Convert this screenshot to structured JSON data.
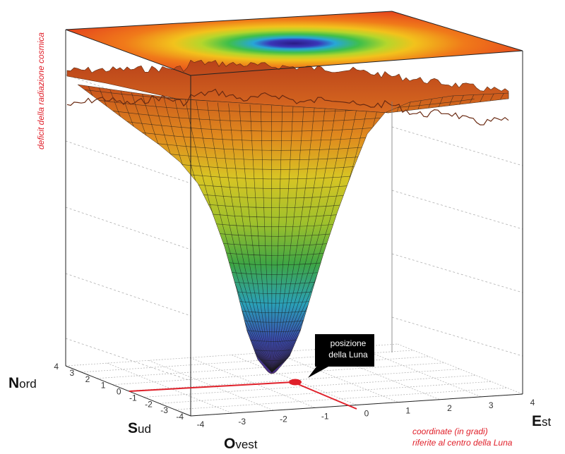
{
  "title": "",
  "axes": {
    "z_label": "deficit della radiazione cosmica",
    "xy_label_line1": "coordinate (in gradi)",
    "xy_label_line2": "riferite al centro della Luna",
    "ew_ticks": [
      "-4",
      "-3",
      "-2",
      "-1",
      "0",
      "1",
      "2",
      "3",
      "4"
    ],
    "ns_ticks": [
      "4",
      "3",
      "2",
      "1",
      "0",
      "-1",
      "-2",
      "-3",
      "-4"
    ]
  },
  "directions": {
    "nord": {
      "initial": "N",
      "rest": "ord"
    },
    "sud": {
      "initial": "S",
      "rest": "ud"
    },
    "ovest": {
      "initial": "O",
      "rest": "vest"
    },
    "est": {
      "initial": "E",
      "rest": "st"
    }
  },
  "callout": {
    "line1": "posizione",
    "line2": "della Luna"
  },
  "colors": {
    "label_red": "#e0202a",
    "marker_red": "#e0202a",
    "callout_bg": "#000000"
  },
  "chart_data": {
    "type": "surface",
    "x_range": [
      -4,
      4
    ],
    "y_range": [
      -4,
      4
    ],
    "x_label": "",
    "y_label": "",
    "z_label": "deficit della radiazione cosmica",
    "minimum_at": {
      "x": 0,
      "y": 0
    },
    "shape": "gaussian-well"
  }
}
